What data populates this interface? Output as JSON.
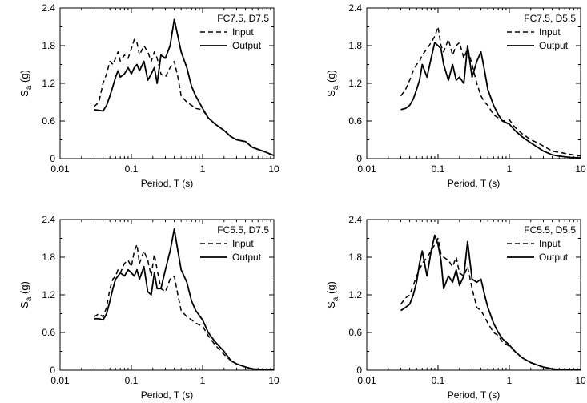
{
  "colors": {
    "line": "#000000",
    "background": "#ffffff"
  },
  "chart_data": [
    {
      "type": "line",
      "legend_title": "FC7.5, D7.5",
      "legend_position": "top-right",
      "xlabel": "Period, T (s)",
      "ylabel_main": "S",
      "ylabel_sub": "a",
      "ylabel_unit": " (g)",
      "xscale": "log",
      "xlim": [
        0.01,
        10
      ],
      "ylim": [
        0,
        2.4
      ],
      "xticks": [
        "0.01",
        "0.1",
        "1",
        "10"
      ],
      "yticks": [
        "0",
        "0.6",
        "1.2",
        "1.8",
        "2.4"
      ],
      "series": [
        {
          "name": "Input",
          "style": "dashed",
          "x": [
            0.03,
            0.035,
            0.04,
            0.045,
            0.05,
            0.055,
            0.06,
            0.065,
            0.07,
            0.08,
            0.09,
            0.1,
            0.11,
            0.12,
            0.13,
            0.15,
            0.17,
            0.19,
            0.21,
            0.23,
            0.26,
            0.3,
            0.35,
            0.4,
            0.45,
            0.5,
            0.6,
            0.7,
            0.8,
            1.0,
            1.2,
            1.5,
            2.0,
            2.5,
            3.0,
            4.0,
            5.0,
            7.0,
            10.0
          ],
          "y": [
            0.83,
            0.9,
            1.2,
            1.35,
            1.55,
            1.5,
            1.6,
            1.7,
            1.55,
            1.65,
            1.6,
            1.75,
            1.9,
            1.85,
            1.65,
            1.8,
            1.7,
            1.55,
            1.7,
            1.6,
            1.35,
            1.3,
            1.45,
            1.55,
            1.3,
            1.0,
            0.9,
            0.85,
            0.8,
            0.78,
            0.65,
            0.55,
            0.45,
            0.35,
            0.3,
            0.27,
            0.18,
            0.12,
            0.05
          ]
        },
        {
          "name": "Output",
          "style": "solid",
          "x": [
            0.03,
            0.035,
            0.04,
            0.045,
            0.05,
            0.055,
            0.06,
            0.065,
            0.07,
            0.08,
            0.09,
            0.1,
            0.11,
            0.12,
            0.13,
            0.15,
            0.17,
            0.19,
            0.21,
            0.23,
            0.26,
            0.3,
            0.35,
            0.4,
            0.45,
            0.5,
            0.6,
            0.7,
            0.8,
            1.0,
            1.2,
            1.5,
            2.0,
            2.5,
            3.0,
            4.0,
            5.0,
            7.0,
            10.0
          ],
          "y": [
            0.78,
            0.77,
            0.76,
            0.85,
            1.0,
            1.15,
            1.3,
            1.4,
            1.3,
            1.35,
            1.45,
            1.35,
            1.45,
            1.5,
            1.4,
            1.55,
            1.25,
            1.35,
            1.45,
            1.2,
            1.65,
            1.6,
            1.8,
            2.22,
            1.95,
            1.7,
            1.45,
            1.15,
            1.0,
            0.8,
            0.65,
            0.55,
            0.45,
            0.35,
            0.3,
            0.27,
            0.18,
            0.12,
            0.05
          ]
        }
      ]
    },
    {
      "type": "line",
      "legend_title": "FC7.5, D5.5",
      "legend_position": "top-right",
      "xlabel": "Period, T (s)",
      "ylabel_main": "S",
      "ylabel_sub": "a",
      "ylabel_unit": " (g)",
      "xscale": "log",
      "xlim": [
        0.01,
        10
      ],
      "ylim": [
        0,
        2.4
      ],
      "xticks": [
        "0.01",
        "0.1",
        "1",
        "10"
      ],
      "yticks": [
        "0",
        "0.6",
        "1.2",
        "1.8",
        "2.4"
      ],
      "series": [
        {
          "name": "Input",
          "style": "dashed",
          "x": [
            0.03,
            0.035,
            0.04,
            0.045,
            0.05,
            0.055,
            0.06,
            0.07,
            0.08,
            0.09,
            0.1,
            0.11,
            0.12,
            0.14,
            0.16,
            0.18,
            0.2,
            0.23,
            0.26,
            0.3,
            0.35,
            0.4,
            0.45,
            0.5,
            0.6,
            0.7,
            0.8,
            1.0,
            1.2,
            1.5,
            2.0,
            2.5,
            3.0,
            4.0,
            5.0,
            7.0,
            10.0
          ],
          "y": [
            1.0,
            1.1,
            1.25,
            1.4,
            1.5,
            1.55,
            1.65,
            1.75,
            1.85,
            1.95,
            2.1,
            1.8,
            1.7,
            1.9,
            1.65,
            1.8,
            1.85,
            1.6,
            1.75,
            1.5,
            1.2,
            1.0,
            0.9,
            0.85,
            0.7,
            0.65,
            0.6,
            0.62,
            0.5,
            0.4,
            0.3,
            0.25,
            0.2,
            0.12,
            0.1,
            0.07,
            0.04
          ]
        },
        {
          "name": "Output",
          "style": "solid",
          "x": [
            0.03,
            0.035,
            0.04,
            0.045,
            0.05,
            0.055,
            0.06,
            0.07,
            0.08,
            0.09,
            0.1,
            0.11,
            0.12,
            0.14,
            0.16,
            0.18,
            0.2,
            0.23,
            0.26,
            0.3,
            0.35,
            0.4,
            0.45,
            0.5,
            0.6,
            0.7,
            0.8,
            1.0,
            1.2,
            1.5,
            2.0,
            2.5,
            3.0,
            4.0,
            5.0,
            7.0,
            10.0
          ],
          "y": [
            0.78,
            0.8,
            0.85,
            0.95,
            1.1,
            1.25,
            1.5,
            1.3,
            1.6,
            1.85,
            1.8,
            1.75,
            1.5,
            1.25,
            1.5,
            1.25,
            1.3,
            1.2,
            1.8,
            1.3,
            1.55,
            1.7,
            1.4,
            1.1,
            0.85,
            0.7,
            0.6,
            0.55,
            0.45,
            0.35,
            0.25,
            0.18,
            0.12,
            0.06,
            0.04,
            0.02,
            0.01
          ]
        }
      ]
    },
    {
      "type": "line",
      "legend_title": "FC5.5, D7.5",
      "legend_position": "top-right",
      "xlabel": "Period, T (s)",
      "ylabel_main": "S",
      "ylabel_sub": "a",
      "ylabel_unit": " (g)",
      "xscale": "log",
      "xlim": [
        0.01,
        10
      ],
      "ylim": [
        0,
        2.4
      ],
      "xticks": [
        "0.01",
        "0.1",
        "1",
        "10"
      ],
      "yticks": [
        "0",
        "0.6",
        "1.2",
        "1.8",
        "2.4"
      ],
      "series": [
        {
          "name": "Input",
          "style": "dashed",
          "x": [
            0.03,
            0.035,
            0.04,
            0.045,
            0.05,
            0.055,
            0.06,
            0.065,
            0.07,
            0.08,
            0.09,
            0.1,
            0.11,
            0.12,
            0.13,
            0.15,
            0.17,
            0.19,
            0.21,
            0.23,
            0.26,
            0.3,
            0.35,
            0.4,
            0.45,
            0.5,
            0.6,
            0.7,
            0.8,
            1.0,
            1.2,
            1.5,
            2.0,
            2.5,
            3.0,
            4.0,
            5.0,
            7.0,
            10.0
          ],
          "y": [
            0.85,
            0.9,
            0.85,
            1.0,
            1.3,
            1.45,
            1.5,
            1.6,
            1.55,
            1.7,
            1.75,
            1.65,
            1.9,
            2.0,
            1.7,
            1.9,
            1.75,
            1.5,
            1.85,
            1.6,
            1.3,
            1.25,
            1.45,
            1.5,
            1.2,
            0.95,
            0.85,
            0.8,
            0.75,
            0.7,
            0.55,
            0.4,
            0.25,
            0.15,
            0.1,
            0.05,
            0.02,
            0.01,
            0.01
          ]
        },
        {
          "name": "Output",
          "style": "solid",
          "x": [
            0.03,
            0.035,
            0.04,
            0.045,
            0.05,
            0.055,
            0.06,
            0.065,
            0.07,
            0.08,
            0.09,
            0.1,
            0.11,
            0.12,
            0.13,
            0.15,
            0.17,
            0.19,
            0.21,
            0.23,
            0.26,
            0.3,
            0.35,
            0.4,
            0.45,
            0.5,
            0.6,
            0.7,
            0.8,
            1.0,
            1.2,
            1.5,
            2.0,
            2.5,
            3.0,
            4.0,
            5.0,
            7.0,
            10.0
          ],
          "y": [
            0.82,
            0.82,
            0.8,
            0.9,
            1.1,
            1.3,
            1.45,
            1.5,
            1.55,
            1.5,
            1.6,
            1.55,
            1.5,
            1.6,
            1.45,
            1.65,
            1.25,
            1.2,
            1.55,
            1.3,
            1.3,
            1.6,
            1.9,
            2.25,
            1.9,
            1.6,
            1.4,
            1.1,
            0.95,
            0.8,
            0.6,
            0.45,
            0.3,
            0.15,
            0.1,
            0.05,
            0.02,
            0.01,
            0.01
          ]
        }
      ]
    },
    {
      "type": "line",
      "legend_title": "FC5.5, D5.5",
      "legend_position": "top-right",
      "xlabel": "Period, T (s)",
      "ylabel_main": "S",
      "ylabel_sub": "a",
      "ylabel_unit": " (g)",
      "xscale": "log",
      "xlim": [
        0.01,
        10
      ],
      "ylim": [
        0,
        2.4
      ],
      "xticks": [
        "0.01",
        "0.1",
        "1",
        "10"
      ],
      "yticks": [
        "0",
        "0.6",
        "1.2",
        "1.8",
        "2.4"
      ],
      "series": [
        {
          "name": "Input",
          "style": "dashed",
          "x": [
            0.03,
            0.035,
            0.04,
            0.045,
            0.05,
            0.055,
            0.06,
            0.07,
            0.08,
            0.09,
            0.1,
            0.11,
            0.12,
            0.14,
            0.16,
            0.18,
            0.2,
            0.23,
            0.26,
            0.3,
            0.35,
            0.4,
            0.45,
            0.5,
            0.6,
            0.7,
            0.8,
            1.0,
            1.2,
            1.5,
            2.0,
            2.5,
            3.0,
            4.0,
            5.0,
            7.0,
            10.0
          ],
          "y": [
            1.05,
            1.15,
            1.2,
            1.35,
            1.5,
            1.6,
            1.7,
            1.8,
            1.9,
            2.0,
            2.1,
            1.85,
            1.8,
            1.75,
            1.65,
            1.8,
            1.55,
            1.5,
            1.65,
            1.3,
            1.0,
            0.95,
            0.85,
            0.75,
            0.6,
            0.55,
            0.45,
            0.38,
            0.3,
            0.2,
            0.12,
            0.08,
            0.05,
            0.02,
            0.01,
            0.01,
            0.01
          ]
        },
        {
          "name": "Output",
          "style": "solid",
          "x": [
            0.03,
            0.035,
            0.04,
            0.045,
            0.05,
            0.055,
            0.06,
            0.07,
            0.08,
            0.09,
            0.1,
            0.11,
            0.12,
            0.14,
            0.16,
            0.18,
            0.2,
            0.23,
            0.26,
            0.3,
            0.35,
            0.4,
            0.45,
            0.5,
            0.6,
            0.7,
            0.8,
            1.0,
            1.2,
            1.5,
            2.0,
            2.5,
            3.0,
            4.0,
            5.0,
            7.0,
            10.0
          ],
          "y": [
            0.95,
            1.0,
            1.05,
            1.2,
            1.4,
            1.7,
            1.9,
            1.5,
            1.9,
            2.15,
            2.0,
            1.75,
            1.3,
            1.5,
            1.4,
            1.6,
            1.35,
            1.5,
            2.05,
            1.45,
            1.4,
            1.45,
            1.2,
            1.0,
            0.75,
            0.6,
            0.5,
            0.4,
            0.3,
            0.2,
            0.12,
            0.08,
            0.05,
            0.02,
            0.01,
            0.01,
            0.01
          ]
        }
      ]
    }
  ]
}
